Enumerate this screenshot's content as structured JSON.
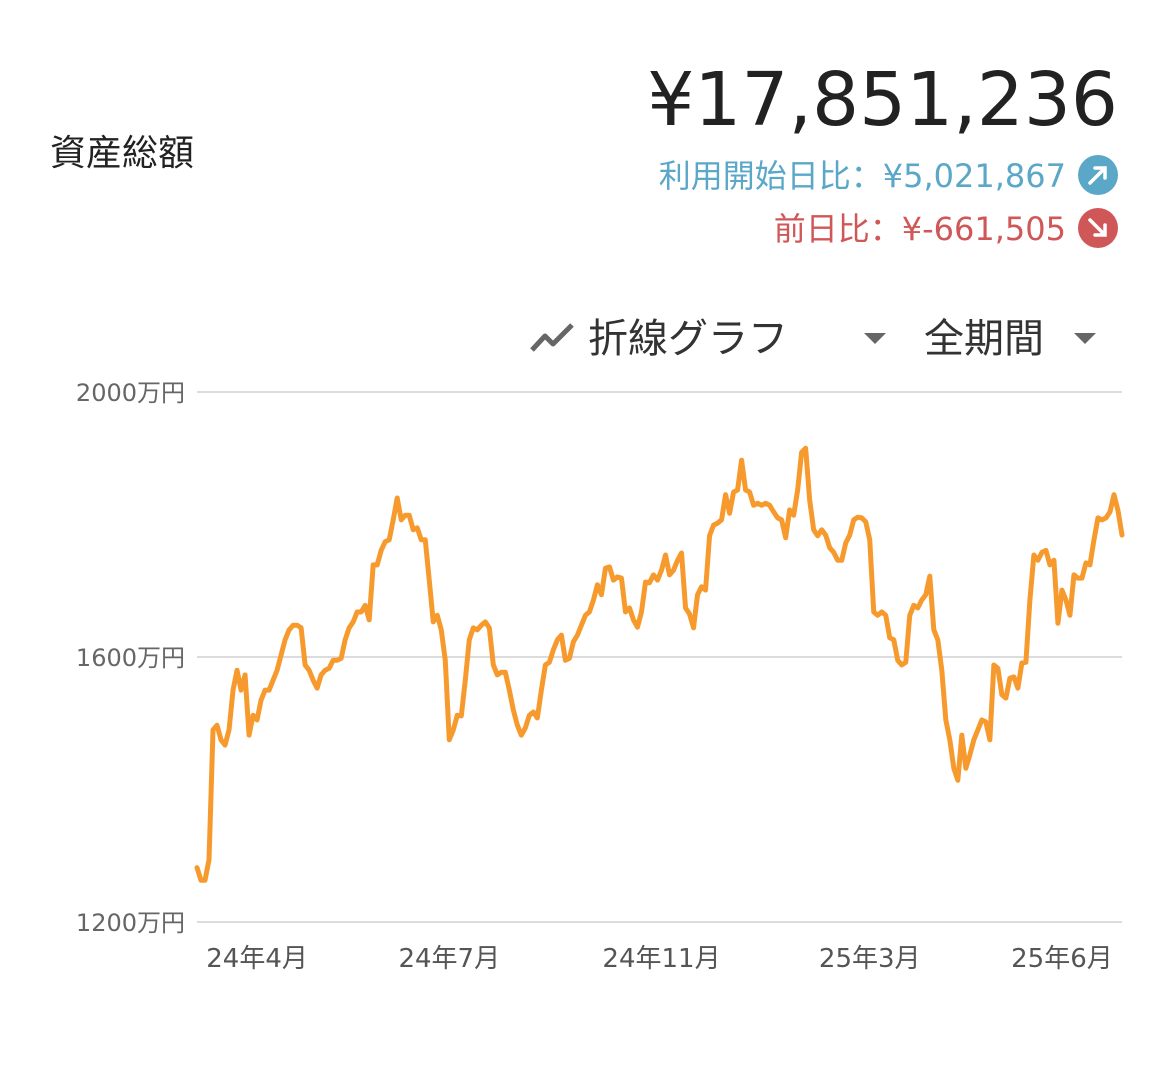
{
  "header": {
    "title": "資産総額",
    "total": "¥17,851,236",
    "since_start": "利用開始日比：¥5,021,867",
    "since_yesterday": "前日比：¥-661,505"
  },
  "controls": {
    "chart_type": "折線グラフ",
    "period": "全期間"
  },
  "chart_data": {
    "type": "line",
    "color": "#f79a2e",
    "grid": true,
    "ylim": [
      1200,
      2000
    ],
    "yticks": [
      {
        "value": 1200,
        "label": "1200万円"
      },
      {
        "value": 1600,
        "label": "1600万円"
      },
      {
        "value": 2000,
        "label": "2000万円"
      }
    ],
    "categories": [
      null,
      null,
      null,
      null,
      null,
      null,
      null,
      null,
      null,
      null,
      null,
      null,
      null,
      null,
      null,
      "24年4月",
      null,
      null,
      null,
      null,
      null,
      null,
      null,
      null,
      null,
      null,
      null,
      null,
      null,
      null,
      null,
      null,
      null,
      null,
      null,
      null,
      null,
      null,
      null,
      null,
      null,
      null,
      null,
      null,
      null,
      null,
      null,
      null,
      null,
      null,
      null,
      null,
      null,
      null,
      null,
      null,
      null,
      null,
      null,
      null,
      null,
      null,
      null,
      "24年7月",
      null,
      null,
      null,
      null,
      null,
      null,
      null,
      null,
      null,
      null,
      null,
      null,
      null,
      null,
      null,
      null,
      null,
      null,
      null,
      null,
      null,
      null,
      null,
      null,
      null,
      null,
      null,
      null,
      null,
      null,
      null,
      null,
      null,
      null,
      null,
      null,
      null,
      null,
      null,
      null,
      null,
      null,
      null,
      null,
      null,
      null,
      null,
      null,
      null,
      null,
      null,
      null,
      "24年11月",
      null,
      null,
      null,
      null,
      null,
      null,
      null,
      null,
      null,
      null,
      null,
      null,
      null,
      null,
      null,
      null,
      null,
      null,
      null,
      null,
      null,
      null,
      null,
      null,
      null,
      null,
      null,
      null,
      null,
      null,
      null,
      null,
      null,
      null,
      null,
      null,
      null,
      null,
      null,
      null,
      null,
      null,
      null,
      null,
      null,
      null,
      null,
      null,
      null,
      null,
      null,
      "25年3月",
      null,
      null,
      null,
      null,
      null,
      null,
      null,
      null,
      null,
      null,
      null,
      null,
      null,
      null,
      null,
      null,
      null,
      null,
      null,
      null,
      null,
      null,
      null,
      null,
      null,
      null,
      null,
      null,
      null,
      null,
      null,
      null,
      null,
      null,
      null,
      null,
      null,
      null,
      null,
      null,
      null,
      null,
      null,
      null,
      null,
      null,
      null,
      "25年6月",
      null,
      null,
      null,
      null,
      null,
      null,
      null,
      null,
      null,
      null,
      null,
      null,
      null,
      null,
      null
    ],
    "values": [
      1282,
      1263,
      1263,
      1294,
      1490,
      1497,
      1475,
      1467,
      1490,
      1550,
      1580,
      1550,
      1573,
      1482,
      1512,
      1505,
      1535,
      1550,
      1550,
      1565,
      1580,
      1603,
      1626,
      1641,
      1648,
      1648,
      1644,
      1588,
      1580,
      1565,
      1553,
      1573,
      1580,
      1583,
      1595,
      1595,
      1598,
      1626,
      1644,
      1653,
      1668,
      1668,
      1678,
      1656,
      1739,
      1739,
      1761,
      1774,
      1777,
      1807,
      1840,
      1807,
      1814,
      1814,
      1792,
      1795,
      1777,
      1777,
      1716,
      1653,
      1663,
      1641,
      1595,
      1475,
      1490,
      1512,
      1511,
      1565,
      1626,
      1644,
      1641,
      1648,
      1653,
      1644,
      1588,
      1573,
      1577,
      1577,
      1550,
      1520,
      1497,
      1482,
      1493,
      1512,
      1517,
      1508,
      1550,
      1588,
      1592,
      1611,
      1626,
      1633,
      1595,
      1598,
      1623,
      1633,
      1648,
      1663,
      1668,
      1686,
      1709,
      1694,
      1734,
      1736,
      1716,
      1721,
      1719,
      1668,
      1674,
      1656,
      1645,
      1668,
      1713,
      1712,
      1724,
      1716,
      1731,
      1754,
      1724,
      1731,
      1746,
      1757,
      1674,
      1665,
      1644,
      1694,
      1706,
      1701,
      1783,
      1799,
      1802,
      1807,
      1845,
      1817,
      1849,
      1852,
      1897,
      1852,
      1849,
      1829,
      1832,
      1829,
      1832,
      1829,
      1819,
      1810,
      1807,
      1780,
      1822,
      1814,
      1852,
      1909,
      1915,
      1837,
      1792,
      1783,
      1792,
      1784,
      1765,
      1758,
      1746,
      1746,
      1772,
      1784,
      1807,
      1811,
      1810,
      1804,
      1777,
      1668,
      1663,
      1668,
      1663,
      1629,
      1626,
      1595,
      1588,
      1592,
      1663,
      1678,
      1674,
      1686,
      1694,
      1722,
      1641,
      1626,
      1580,
      1505,
      1475,
      1432,
      1414,
      1482,
      1432,
      1452,
      1475,
      1490,
      1505,
      1502,
      1475,
      1588,
      1583,
      1543,
      1538,
      1568,
      1570,
      1553,
      1591,
      1592,
      1686,
      1754,
      1746,
      1758,
      1761,
      1739,
      1746,
      1651,
      1701,
      1686,
      1663,
      1724,
      1719,
      1719,
      1742,
      1739,
      1777,
      1810,
      1807,
      1810,
      1819,
      1845,
      1821,
      1784
    ]
  }
}
